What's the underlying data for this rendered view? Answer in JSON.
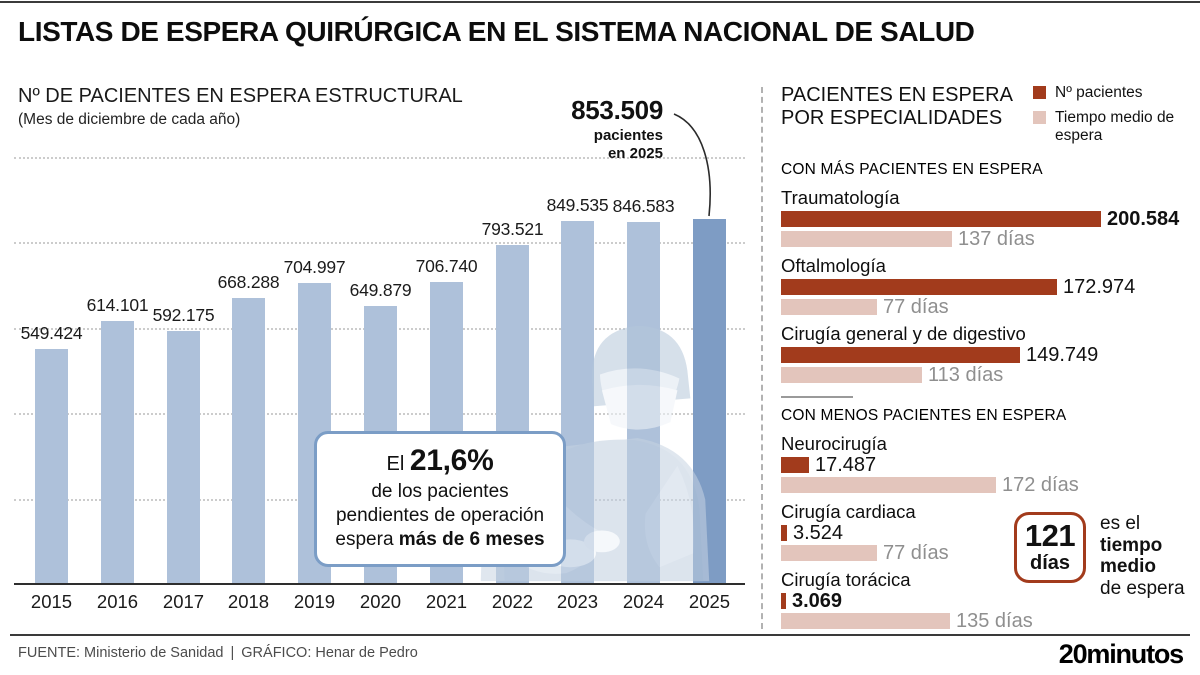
{
  "ui": {
    "header": {
      "title": "LISTAS DE ESPERA QUIRÚRGICA EN EL SISTEMA NACIONAL DE SALUD"
    },
    "left": {
      "annotation": {
        "value": "853.509",
        "line2": "pacientes",
        "line3": "en 2025"
      },
      "callout": {
        "lead": "El ",
        "highlight": "21,6%",
        "line2": "de los pacientes",
        "line3": "pendientes de operación",
        "line4_pre": "espera ",
        "line4_bold": "más de 6 meses"
      }
    },
    "right": {
      "title_line1": "PACIENTES EN ESPERA",
      "title_line2": "POR ESPECIALIDADES",
      "note": {
        "value": "121",
        "unit": "días",
        "line1": "es el",
        "line2": "tiempo",
        "line3": "medio",
        "line4": "de espera"
      }
    },
    "footer": {
      "source": "FUENTE: Ministerio de Sanidad",
      "separator": "|",
      "credit": "GRÁFICO: Henar de Pedro",
      "logo": "20minutos"
    }
  },
  "chart_data": [
    {
      "type": "bar",
      "title": "Nº DE PACIENTES EN ESPERA ESTRUCTURAL",
      "subtitle": "(Mes de diciembre de cada año)",
      "categories": [
        "2015",
        "2016",
        "2017",
        "2018",
        "2019",
        "2020",
        "2021",
        "2022",
        "2023",
        "2024",
        "2025"
      ],
      "values": [
        549424,
        614101,
        592175,
        668288,
        704997,
        649879,
        706740,
        793521,
        849535,
        846583,
        853509
      ],
      "value_labels": [
        "549.424",
        "614.101",
        "592.175",
        "668.288",
        "704.997",
        "649.879",
        "706.740",
        "793.521",
        "849.535",
        "846.583",
        ""
      ],
      "ylim": [
        0,
        1000000
      ],
      "gridline_values": [
        200000,
        400000,
        600000,
        800000,
        1000000
      ],
      "grid": "horizontal-dotted, no y tick labels",
      "legend_position": "none",
      "highlight_index": 10,
      "annotation": "853.509 pacientes en 2025",
      "bar_color": "#aec1da",
      "highlight_color": "#7e9cc4"
    },
    {
      "type": "bar",
      "title": "PACIENTES EN ESPERA POR ESPECIALIDADES",
      "orientation": "horizontal",
      "legend": [
        {
          "label": "Nº pacientes",
          "color": "#a23b1c"
        },
        {
          "label": "Tiempo medio de espera",
          "color": "#e3c5bc"
        }
      ],
      "groups": [
        {
          "section": "CON MÁS PACIENTES EN ESPERA",
          "items": [
            {
              "name": "Traumatología",
              "patients": 200584,
              "patients_label": "200.584",
              "patients_bold": true,
              "days": 137,
              "days_label": "137 días",
              "days_bold": false
            },
            {
              "name": "Oftalmología",
              "patients": 172974,
              "patients_label": "172.974",
              "patients_bold": false,
              "days": 77,
              "days_label": "77 días",
              "days_bold": false
            },
            {
              "name": "Cirugía general y de digestivo",
              "patients": 149749,
              "patients_label": "149.749",
              "patients_bold": false,
              "days": 113,
              "days_label": "113 días",
              "days_bold": false
            }
          ]
        },
        {
          "section": "CON MENOS PACIENTES EN ESPERA",
          "items": [
            {
              "name": "Neurocirugía",
              "patients": 17487,
              "patients_label": "17.487",
              "patients_bold": false,
              "days": 172,
              "days_label": "172 días",
              "days_bold": false
            },
            {
              "name": "Cirugía cardiaca",
              "patients": 3524,
              "patients_label": "3.524",
              "patients_bold": false,
              "days": 77,
              "days_label": "77 días",
              "days_bold": false
            },
            {
              "name": "Cirugía torácica",
              "patients": 3069,
              "patients_label": "3.069",
              "patients_bold": true,
              "days": 135,
              "days_label": "135 días",
              "days_bold": false
            }
          ]
        }
      ],
      "highlight_note": "121 días es el tiempo medio de espera"
    }
  ]
}
